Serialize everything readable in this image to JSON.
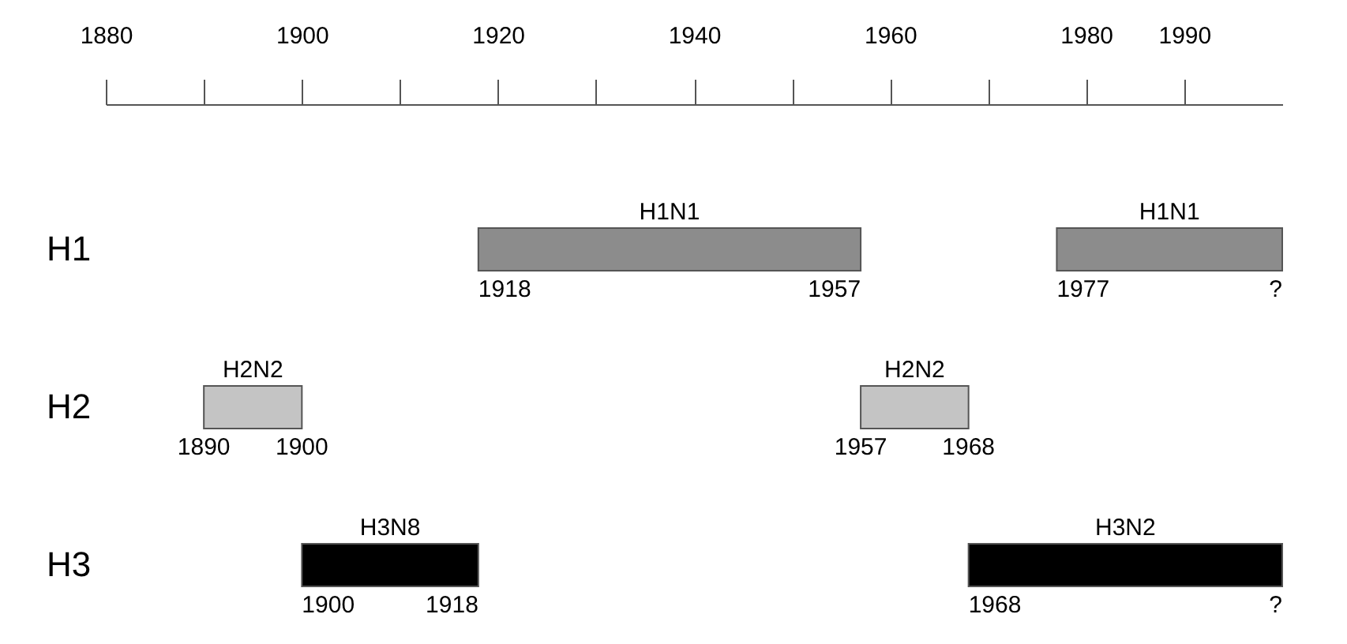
{
  "chart_data": {
    "type": "bar",
    "orientation": "horizontal",
    "categories": [
      "H1",
      "H2",
      "H3"
    ],
    "series": [
      {
        "name": "H1N1",
        "color": "#8c8c8c",
        "base": [
          1918,
          null,
          null
        ],
        "values": [
          39,
          null,
          null
        ]
      },
      {
        "name": "H1N1",
        "color": "#8c8c8c",
        "base": [
          1977,
          null,
          null
        ],
        "values": [
          23,
          null,
          null
        ]
      },
      {
        "name": "H2N2",
        "color": "#c4c4c4",
        "base": [
          null,
          1890,
          null
        ],
        "values": [
          null,
          10,
          null
        ]
      },
      {
        "name": "H2N2",
        "color": "#c4c4c4",
        "base": [
          null,
          1957,
          null
        ],
        "values": [
          null,
          11,
          null
        ]
      },
      {
        "name": "H3N8",
        "color": "#000000",
        "base": [
          null,
          null,
          1900
        ],
        "values": [
          null,
          null,
          18
        ]
      },
      {
        "name": "H3N2",
        "color": "#000000",
        "base": [
          null,
          null,
          1968
        ],
        "values": [
          null,
          null,
          32
        ]
      }
    ],
    "xlim": [
      1880,
      2000
    ],
    "xticks": [
      1880,
      1900,
      1920,
      1940,
      1960,
      1980,
      1990
    ],
    "annotations": [
      {
        "text": "1918",
        "x": 1918,
        "y": "H1"
      },
      {
        "text": "1957",
        "x": 1957,
        "y": "H1"
      },
      {
        "text": "1977",
        "x": 1977,
        "y": "H1"
      },
      {
        "text": "?",
        "x": 2000,
        "y": "H1"
      },
      {
        "text": "1890",
        "x": 1890,
        "y": "H2"
      },
      {
        "text": "1900",
        "x": 1900,
        "y": "H2"
      },
      {
        "text": "1957",
        "x": 1957,
        "y": "H2"
      },
      {
        "text": "1968",
        "x": 1968,
        "y": "H2"
      },
      {
        "text": "1900",
        "x": 1900,
        "y": "H3"
      },
      {
        "text": "1918",
        "x": 1918,
        "y": "H3"
      },
      {
        "text": "1968",
        "x": 1968,
        "y": "H3"
      },
      {
        "text": "?",
        "x": 2000,
        "y": "H3"
      }
    ]
  }
}
